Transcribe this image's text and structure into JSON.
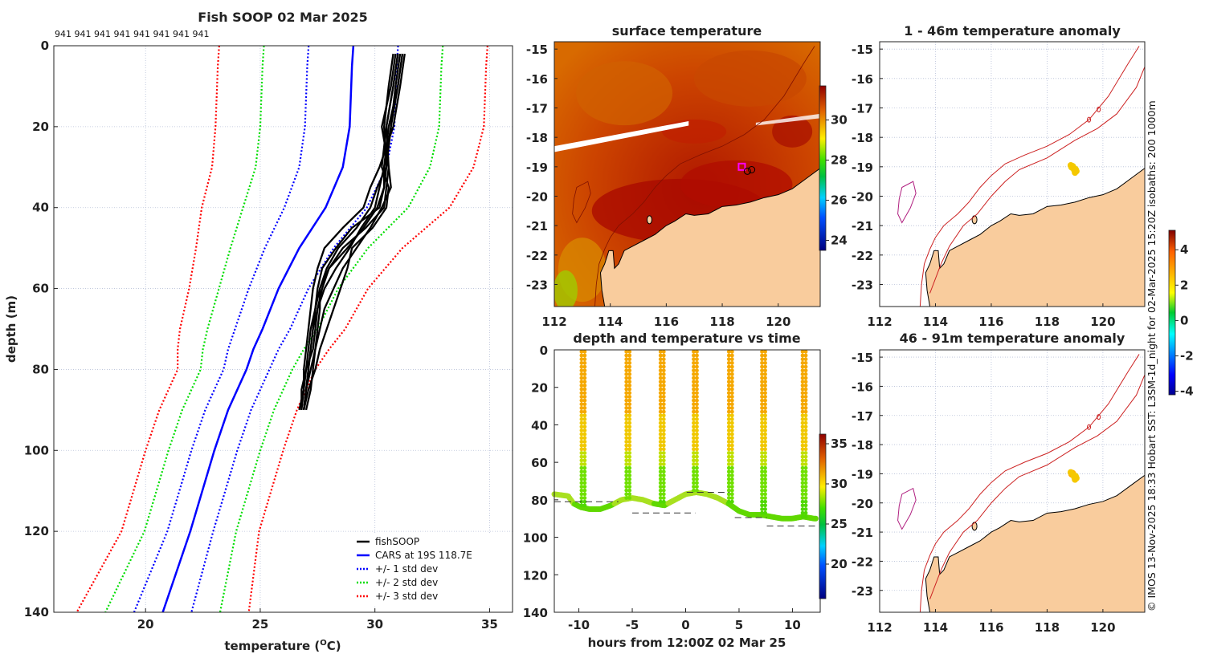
{
  "chart_data": [
    {
      "type": "line",
      "title": "Fish SOOP 02 Mar 2025",
      "top_annotation": "941 941 941 941 941 941 941 941",
      "xlabel": "temperature (",
      "xlabel_sup": "O",
      "xlabel_tail": "C)",
      "ylabel": "depth (m)",
      "xlim": [
        16,
        36
      ],
      "ylim": [
        0,
        140
      ],
      "xticks": [
        "20",
        "25",
        "30",
        "35"
      ],
      "xtick_values": [
        20,
        25,
        30,
        35
      ],
      "yticks": [
        "0",
        "20",
        "40",
        "60",
        "80",
        "100",
        "120",
        "140"
      ],
      "ytick_values": [
        0,
        20,
        40,
        60,
        80,
        100,
        120,
        140
      ],
      "legend": [
        "fishSOOP",
        "CARS at 19S 118.7E",
        "+/- 1 std dev",
        "+/- 2 std dev",
        "+/- 3 std dev"
      ],
      "legend_position": "bottom-right",
      "colors": {
        "fish": "#000000",
        "cars": "#0000ff",
        "std1": "#0000ff",
        "std2": "#00dd00",
        "std3": "#ff0000"
      },
      "cars_depths": [
        0,
        5,
        20,
        30,
        40,
        50,
        60,
        70,
        75,
        80,
        90,
        100,
        120,
        140
      ],
      "cars_temps": [
        29.06,
        29.0,
        28.9,
        28.6,
        27.85,
        26.7,
        25.8,
        25.1,
        24.7,
        24.4,
        23.6,
        23.0,
        21.95,
        20.75
      ],
      "cars_std": [
        1.95,
        1.95,
        1.95,
        1.9,
        1.8,
        1.5,
        1.3,
        1.2,
        1.1,
        1.0,
        1.0,
        1.0,
        1.0,
        1.25
      ],
      "fish_depths": [
        2,
        10,
        20,
        30,
        35,
        40,
        45,
        50,
        55,
        60,
        65,
        70,
        75,
        80,
        85,
        90
      ],
      "fish_profiles": [
        [
          31.2,
          31.0,
          30.6,
          30.4,
          30.4,
          30.2,
          29.0,
          28.3,
          27.7,
          27.5,
          27.4,
          27.3,
          27.2,
          27.1,
          27.0,
          26.9
        ],
        [
          31.0,
          30.8,
          30.5,
          30.6,
          30.5,
          30.4,
          29.6,
          28.6,
          28.0,
          27.7,
          27.5,
          27.4,
          27.3,
          27.0,
          26.8,
          26.8
        ],
        [
          31.3,
          31.1,
          30.8,
          30.2,
          29.8,
          29.5,
          28.6,
          27.8,
          27.5,
          27.3,
          27.2,
          27.1,
          27.0,
          26.9,
          26.9,
          26.7
        ],
        [
          30.9,
          30.7,
          30.3,
          30.6,
          30.7,
          30.3,
          29.8,
          29.2,
          28.6,
          28.2,
          27.8,
          27.6,
          27.4,
          27.2,
          27.0,
          26.9
        ],
        [
          31.1,
          30.9,
          30.7,
          30.5,
          30.1,
          29.8,
          29.2,
          28.4,
          27.9,
          27.6,
          27.6,
          27.5,
          27.4,
          27.3,
          27.2,
          27.0
        ],
        [
          31.0,
          30.8,
          30.5,
          30.3,
          30.6,
          30.5,
          29.9,
          29.0,
          28.8,
          28.5,
          28.2,
          27.9,
          27.6,
          27.4,
          27.1,
          26.9
        ],
        [
          31.2,
          31.0,
          30.7,
          30.4,
          30.2,
          30.0,
          29.4,
          28.9,
          28.3,
          27.8,
          27.5,
          27.3,
          27.2,
          27.1,
          27.0,
          26.9
        ],
        [
          30.8,
          30.6,
          30.4,
          30.5,
          30.4,
          30.1,
          29.5,
          28.8,
          28.0,
          27.6,
          27.4,
          27.2,
          27.1,
          27.0,
          26.9,
          26.8
        ]
      ]
    },
    {
      "type": "heatmap",
      "title": "surface temperature",
      "xlim": [
        112,
        121.5
      ],
      "ylim": [
        -23.75,
        -14.75
      ],
      "xticks": [
        "112",
        "114",
        "116",
        "118",
        "120"
      ],
      "xtick_values": [
        112,
        114,
        116,
        118,
        120
      ],
      "yticks": [
        "-15",
        "-16",
        "-17",
        "-18",
        "-19",
        "-20",
        "-21",
        "-22",
        "-23"
      ],
      "ytick_values": [
        -15,
        -16,
        -17,
        -18,
        -19,
        -20,
        -21,
        -22,
        -23
      ],
      "colorbar_ticks": [
        "24",
        "26",
        "28",
        "30"
      ],
      "colorbar_tick_values": [
        24,
        26,
        28,
        30
      ],
      "colorbar_range": [
        23.5,
        31.7
      ],
      "marker": {
        "lon": 118.7,
        "lat": -19.0
      }
    },
    {
      "type": "scatter",
      "title": "depth and temperature vs time",
      "xlabel": "hours from 12:00Z 02 Mar 25",
      "xlim": [
        -12.3,
        12.6
      ],
      "ylim": [
        0,
        140
      ],
      "xticks": [
        "-10",
        "-5",
        "0",
        "5",
        "10"
      ],
      "xtick_values": [
        -10,
        -5,
        0,
        5,
        10
      ],
      "yticks": [
        "0",
        "20",
        "40",
        "60",
        "80",
        "100",
        "120",
        "140"
      ],
      "ytick_values": [
        0,
        20,
        40,
        60,
        80,
        100,
        120,
        140
      ],
      "colorbar_ticks": [
        "20",
        "25",
        "30",
        "35"
      ],
      "colorbar_tick_values": [
        20,
        25,
        30,
        35
      ],
      "colorbar_range": [
        15.7,
        36.2
      ],
      "bottom_track": [
        [
          -12.3,
          77
        ],
        [
          -11,
          78
        ],
        [
          -10.5,
          82
        ],
        [
          -9.8,
          84
        ],
        [
          -9,
          85
        ],
        [
          -8,
          85
        ],
        [
          -7,
          83
        ],
        [
          -6,
          80
        ],
        [
          -5,
          79
        ],
        [
          -4,
          80
        ],
        [
          -3,
          82
        ],
        [
          -2,
          83
        ],
        [
          -1,
          80
        ],
        [
          0,
          77
        ],
        [
          1,
          76
        ],
        [
          2,
          77
        ],
        [
          3,
          79
        ],
        [
          4,
          82
        ],
        [
          5,
          86
        ],
        [
          6,
          88
        ],
        [
          7,
          88
        ],
        [
          8,
          89
        ],
        [
          9,
          90
        ],
        [
          10,
          90
        ],
        [
          11,
          89
        ],
        [
          12,
          90
        ]
      ],
      "casts_hours": [
        -9.6,
        -5.4,
        -2.2,
        0.9,
        4.2,
        7.3,
        11.1
      ],
      "dashed_segments": [
        {
          "from": -12.3,
          "to": -6.3,
          "depth": 81
        },
        {
          "from": -5.0,
          "to": 0.9,
          "depth": 87
        },
        {
          "from": 0.1,
          "to": 4.1,
          "depth": 76
        },
        {
          "from": 4.6,
          "to": 7.6,
          "depth": 89.5
        },
        {
          "from": 7.6,
          "to": 12.4,
          "depth": 94
        }
      ]
    },
    {
      "type": "heatmap",
      "title": "1 - 46m temperature anomaly",
      "xlim": [
        112,
        121.5
      ],
      "ylim": [
        -23.75,
        -14.75
      ],
      "xticks": [
        "112",
        "114",
        "116",
        "118",
        "120"
      ],
      "xtick_values": [
        112,
        114,
        116,
        118,
        120
      ],
      "yticks": [
        "-15",
        "-16",
        "-17",
        "-18",
        "-19",
        "-20",
        "-21",
        "-22",
        "-23"
      ],
      "ytick_values": [
        -15,
        -16,
        -17,
        -18,
        -19,
        -20,
        -21,
        -22,
        -23
      ],
      "anomaly_points": [
        {
          "lon": 118.9,
          "lat": -19.0,
          "value": 2.8
        },
        {
          "lon": 119.0,
          "lat": -19.1,
          "value": 2.5
        }
      ]
    },
    {
      "type": "heatmap",
      "title": "46 - 91m temperature anomaly",
      "xlim": [
        112,
        121.5
      ],
      "ylim": [
        -23.75,
        -14.75
      ],
      "xticks": [
        "112",
        "114",
        "116",
        "118",
        "120"
      ],
      "xtick_values": [
        112,
        114,
        116,
        118,
        120
      ],
      "yticks": [
        "-15",
        "-16",
        "-17",
        "-18",
        "-19",
        "-20",
        "-21",
        "-22",
        "-23"
      ],
      "ytick_values": [
        -15,
        -16,
        -17,
        -18,
        -19,
        -20,
        -21,
        -22,
        -23
      ],
      "anomaly_points": [
        {
          "lon": 118.9,
          "lat": -19.0,
          "value": 3.2
        },
        {
          "lon": 119.0,
          "lat": -19.1,
          "value": 3.0
        }
      ],
      "colorbar_ticks": [
        "4",
        "2",
        "0",
        "-2",
        "-4"
      ],
      "colorbar_tick_values": [
        4,
        2,
        0,
        -2,
        -4
      ],
      "colorbar_range": [
        -4.2,
        5.1
      ]
    }
  ],
  "side_note": "© IMOS 13-Nov-2025 18:33 Hobart SST: L3SM-1d_night for 02-Mar-2025 15:20Z isobaths: 200  1000m",
  "colors": {
    "land": "#f9cc9d",
    "isobath": "#cc2222",
    "sst_warm": "#b81c00"
  }
}
